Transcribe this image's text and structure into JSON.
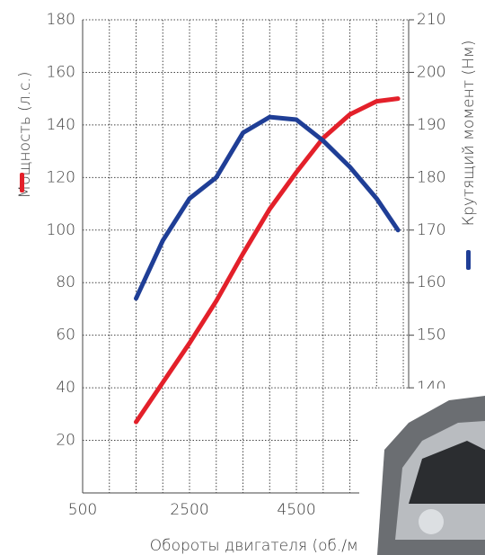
{
  "chart_data": {
    "type": "line",
    "xlabel": "Обороты двигателя (об./мин.)",
    "x": [
      1500,
      2000,
      2500,
      3000,
      3500,
      4000,
      4500,
      5000,
      5500,
      6000,
      6400
    ],
    "series": [
      {
        "name": "Мощность (л.с.)",
        "color": "#e3202a",
        "values": [
          27,
          42,
          57,
          73,
          91,
          108,
          122,
          135,
          144,
          149,
          150
        ]
      },
      {
        "name": "Крутящий момент (Нм)",
        "color": "#1f3e96",
        "axis": "y2",
        "values": [
          157,
          168,
          176,
          180,
          188.5,
          191.5,
          191,
          187,
          182,
          176,
          170
        ]
      }
    ],
    "xlim": [
      500,
      6600
    ],
    "xticks": [
      500,
      2500,
      4500
    ],
    "xgrid": [
      1000,
      1500,
      2000,
      2500,
      3000,
      3500,
      4000,
      4500,
      5000,
      5500,
      6000,
      6500
    ],
    "ylim": [
      0,
      180
    ],
    "yticks": [
      20,
      40,
      60,
      80,
      100,
      120,
      140,
      160,
      180
    ],
    "y2lim": [
      120,
      210
    ],
    "y2ticks": [
      140,
      150,
      160,
      170,
      180,
      190,
      200,
      210
    ],
    "grid": true
  }
}
